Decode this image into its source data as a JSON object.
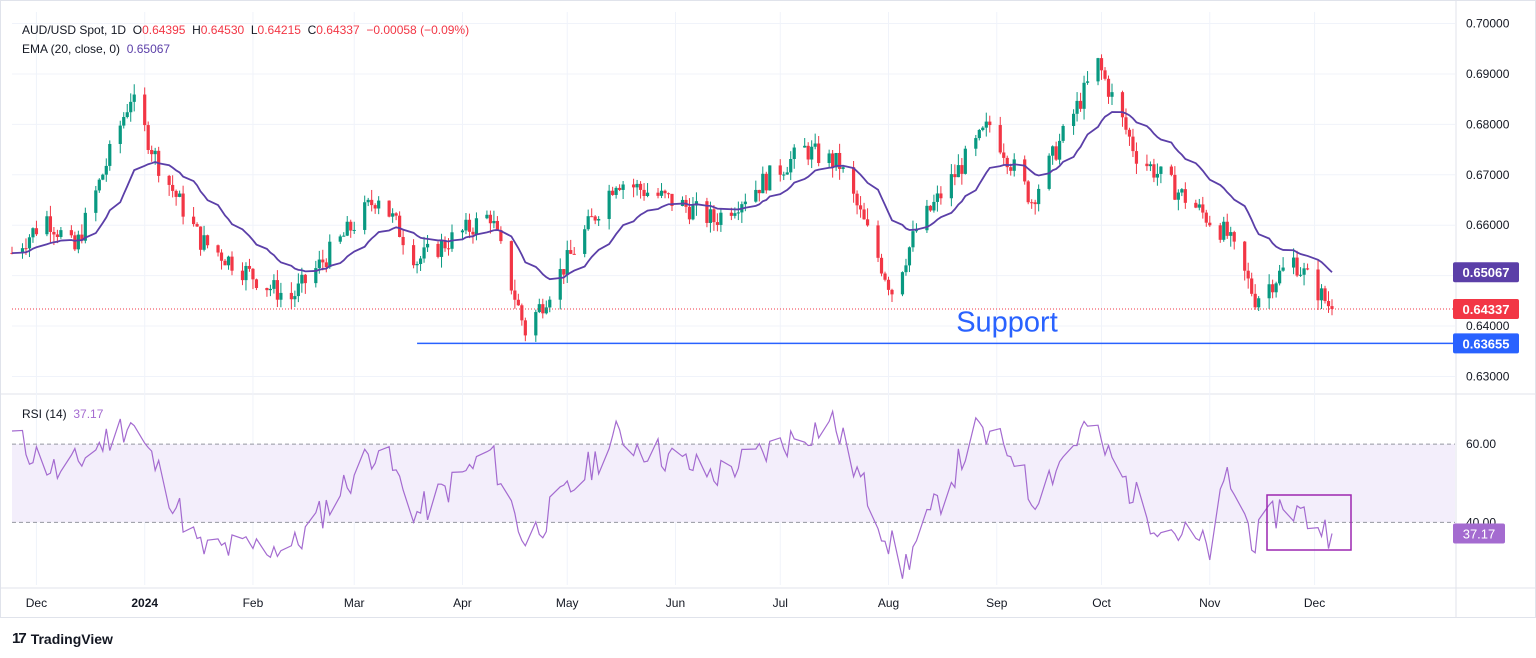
{
  "header": {
    "symbol": "AUD/USD Spot, 1D",
    "o_label": "O",
    "o": "0.64395",
    "h_label": "H",
    "h": "0.64530",
    "l_label": "L",
    "l": "0.64215",
    "c_label": "C",
    "c": "0.64337",
    "change": "−0.00058 (−0.09%)",
    "ema_label": "EMA (20, close, 0)",
    "ema_value": "0.65067",
    "rsi_label": "RSI (14)",
    "rsi_value": "37.17"
  },
  "brand": {
    "logo": "17",
    "name": "TradingView"
  },
  "colors": {
    "up": "#089981",
    "down": "#f23645",
    "ema": "#5b3fa8",
    "rsi": "#a46bd0",
    "support": "#2962ff"
  },
  "chart_data": {
    "type": "candlestick",
    "title": "AUD/USD Spot, 1D",
    "price_axis": {
      "ticks": [
        0.63,
        0.64,
        0.65,
        0.66,
        0.67,
        0.68,
        0.69,
        0.7
      ],
      "tick_labels": [
        "0.63000",
        "0.64000",
        "0.65000",
        "0.66000",
        "0.67000",
        "0.68000",
        "0.69000",
        "0.70000"
      ],
      "ylim": [
        0.6285,
        0.7015
      ]
    },
    "time_axis": {
      "labels": [
        "Dec",
        "2024",
        "Feb",
        "Mar",
        "Apr",
        "May",
        "Jun",
        "Jul",
        "Aug",
        "Sep",
        "Oct",
        "Nov",
        "Dec"
      ]
    },
    "price_path": [
      {
        "date": "2023-11-24",
        "close": 0.6545
      },
      {
        "date": "2023-12-04",
        "close": 0.6615
      },
      {
        "date": "2023-12-12",
        "close": 0.655
      },
      {
        "date": "2023-12-28",
        "close": 0.6855
      },
      {
        "date": "2024-01-05",
        "close": 0.672
      },
      {
        "date": "2024-01-17",
        "close": 0.657
      },
      {
        "date": "2024-02-05",
        "close": 0.648
      },
      {
        "date": "2024-02-12",
        "close": 0.6455
      },
      {
        "date": "2024-03-08",
        "close": 0.666
      },
      {
        "date": "2024-03-19",
        "close": 0.653
      },
      {
        "date": "2024-04-09",
        "close": 0.662
      },
      {
        "date": "2024-04-19",
        "close": 0.639
      },
      {
        "date": "2024-05-15",
        "close": 0.669
      },
      {
        "date": "2024-06-03",
        "close": 0.664
      },
      {
        "date": "2024-06-12",
        "close": 0.661
      },
      {
        "date": "2024-07-08",
        "close": 0.675
      },
      {
        "date": "2024-07-18",
        "close": 0.672
      },
      {
        "date": "2024-08-02",
        "close": 0.647
      },
      {
        "date": "2024-08-09",
        "close": 0.659
      },
      {
        "date": "2024-08-30",
        "close": 0.68
      },
      {
        "date": "2024-09-11",
        "close": 0.665
      },
      {
        "date": "2024-09-30",
        "close": 0.692
      },
      {
        "date": "2024-10-11",
        "close": 0.674
      },
      {
        "date": "2024-11-06",
        "close": 0.658
      },
      {
        "date": "2024-11-14",
        "close": 0.6455
      },
      {
        "date": "2024-11-25",
        "close": 0.653
      },
      {
        "date": "2024-12-06",
        "close": 0.6434
      }
    ],
    "last": {
      "open": 0.64395,
      "high": 0.6453,
      "low": 0.64215,
      "close": 0.64337
    },
    "ema20_last": 0.65067,
    "support": {
      "label": "Support",
      "level": 0.63655,
      "level_label": "0.63655"
    },
    "price_labels": {
      "ema": "0.65067",
      "last": "0.64337"
    },
    "rsi": {
      "period": 14,
      "last": 37.17,
      "last_label": "37.17",
      "levels": [
        60,
        40
      ],
      "level_labels": [
        "60.00",
        "40.00"
      ],
      "path": [
        {
          "date": "2023-11-24",
          "rsi": 62
        },
        {
          "date": "2023-12-08",
          "rsi": 52
        },
        {
          "date": "2023-12-28",
          "rsi": 66
        },
        {
          "date": "2024-01-17",
          "rsi": 33
        },
        {
          "date": "2024-02-13",
          "rsi": 34
        },
        {
          "date": "2024-03-08",
          "rsi": 60
        },
        {
          "date": "2024-03-19",
          "rsi": 42
        },
        {
          "date": "2024-04-09",
          "rsi": 58
        },
        {
          "date": "2024-04-19",
          "rsi": 35
        },
        {
          "date": "2024-05-15",
          "rsi": 62
        },
        {
          "date": "2024-06-12",
          "rsi": 52
        },
        {
          "date": "2024-07-16",
          "rsi": 66
        },
        {
          "date": "2024-08-05",
          "rsi": 28
        },
        {
          "date": "2024-08-26",
          "rsi": 63
        },
        {
          "date": "2024-09-06",
          "rsi": 58
        },
        {
          "date": "2024-09-11",
          "rsi": 46
        },
        {
          "date": "2024-09-27",
          "rsi": 65
        },
        {
          "date": "2024-10-14",
          "rsi": 42
        },
        {
          "date": "2024-11-01",
          "rsi": 33
        },
        {
          "date": "2024-11-06",
          "rsi": 52
        },
        {
          "date": "2024-11-14",
          "rsi": 35
        },
        {
          "date": "2024-11-22",
          "rsi": 45
        },
        {
          "date": "2024-12-06",
          "rsi": 37.17
        }
      ]
    }
  }
}
